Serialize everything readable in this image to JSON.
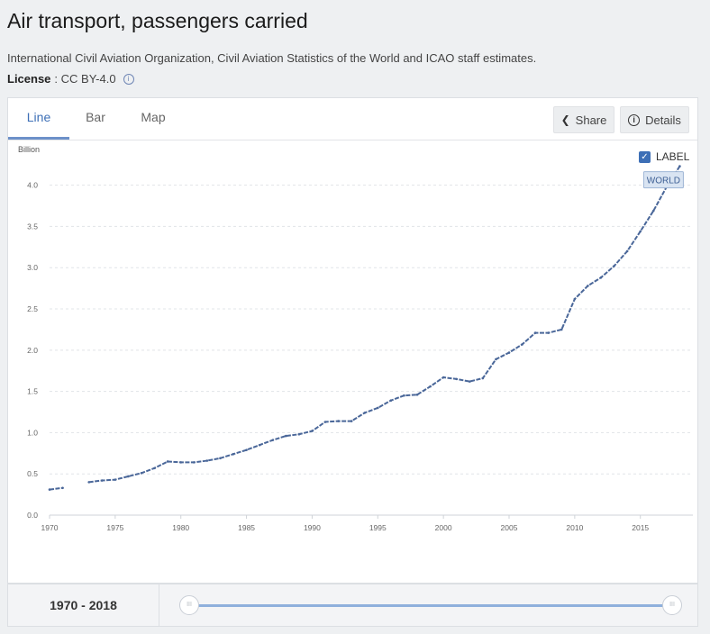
{
  "header": {
    "title": "Air transport, passengers carried",
    "source": "International Civil Aviation Organization, Civil Aviation Statistics of the World and ICAO staff estimates.",
    "license_label": "License",
    "license_value": ": CC BY-4.0"
  },
  "tabs": [
    {
      "label": "Line",
      "active": true
    },
    {
      "label": "Bar",
      "active": false
    },
    {
      "label": "Map",
      "active": false
    }
  ],
  "toolbar": {
    "share_label": "Share",
    "details_label": "Details"
  },
  "label_toggle": {
    "text": "LABEL",
    "checked": true
  },
  "range": {
    "text": "1970 - 2018"
  },
  "colors": {
    "line": "#4a6799",
    "accent": "#3d6fb6"
  },
  "chart_data": {
    "type": "line",
    "ylabel": "Billion",
    "ylim": [
      0,
      4.4
    ],
    "xlim": [
      1970,
      2019
    ],
    "y_ticks": [
      0.0,
      0.5,
      1.0,
      1.5,
      2.0,
      2.5,
      3.0,
      3.5,
      4.0
    ],
    "y_tick_labels": [
      "0.0",
      "0.5",
      "1.0",
      "1.5",
      "2.0",
      "2.5",
      "3.0",
      "3.5",
      "4.0"
    ],
    "x_ticks": [
      1970,
      1975,
      1980,
      1985,
      1990,
      1995,
      2000,
      2005,
      2010,
      2015
    ],
    "x_tick_labels": [
      "1970",
      "1975",
      "1980",
      "1985",
      "1990",
      "1995",
      "2000",
      "2005",
      "2010",
      "2015"
    ],
    "grid": true,
    "series": [
      {
        "name": "WORLD",
        "segments": [
          {
            "x": [
              1970,
              1971
            ],
            "y": [
              0.31,
              0.33
            ]
          },
          {
            "x": [
              1973,
              1974,
              1975,
              1976,
              1977,
              1978,
              1979,
              1980,
              1981,
              1982,
              1983,
              1984,
              1985,
              1986,
              1987,
              1988,
              1989,
              1990,
              1991,
              1992,
              1993,
              1994,
              1995,
              1996,
              1997,
              1998,
              1999,
              2000,
              2001,
              2002,
              2003,
              2004,
              2005,
              2006,
              2007,
              2008,
              2009,
              2010,
              2011,
              2012,
              2013,
              2014,
              2015,
              2016,
              2017,
              2018
            ],
            "y": [
              0.4,
              0.42,
              0.43,
              0.47,
              0.51,
              0.57,
              0.65,
              0.64,
              0.64,
              0.66,
              0.69,
              0.74,
              0.79,
              0.85,
              0.91,
              0.96,
              0.98,
              1.02,
              1.13,
              1.14,
              1.14,
              1.24,
              1.3,
              1.39,
              1.45,
              1.46,
              1.56,
              1.67,
              1.65,
              1.62,
              1.66,
              1.89,
              1.97,
              2.07,
              2.21,
              2.21,
              2.25,
              2.62,
              2.78,
              2.88,
              3.02,
              3.2,
              3.44,
              3.69,
              3.98,
              4.23
            ]
          }
        ]
      }
    ]
  }
}
